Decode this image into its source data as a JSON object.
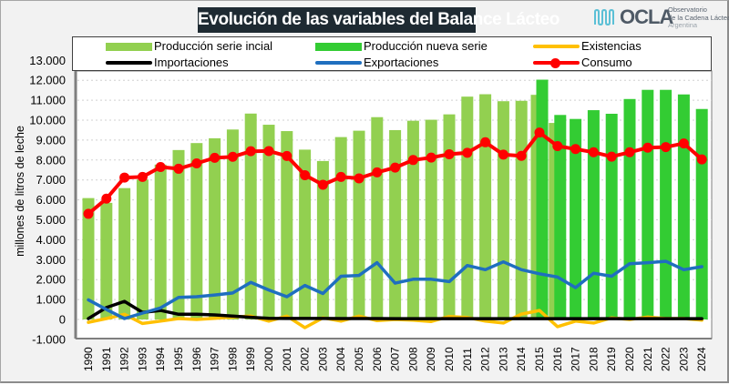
{
  "title": "Evolución de las variables del Balance Lácteo",
  "logo": {
    "icon": "ocla-wave-logo-icon",
    "name": "OCLA",
    "line1": "Observatorio",
    "line2": "de la Cadena Láctea",
    "line3": "Argentina"
  },
  "chart_data": {
    "type": "bar",
    "title": "Evolución de las variables del Balance Lácteo",
    "xlabel": "",
    "ylabel": "millones de litros de leche",
    "ylim": [
      -1000,
      13000
    ],
    "yticks": [
      -1000,
      0,
      1000,
      2000,
      3000,
      4000,
      5000,
      6000,
      7000,
      8000,
      9000,
      10000,
      11000,
      12000,
      13000
    ],
    "ytick_labels": [
      "-1.000",
      "0",
      "1.000",
      "2.000",
      "3.000",
      "4.000",
      "5.000",
      "6.000",
      "7.000",
      "8.000",
      "9.000",
      "10.000",
      "11.000",
      "12.000",
      "13.000"
    ],
    "grid": true,
    "legend_position": "top",
    "categories": [
      "1990",
      "1991",
      "1992",
      "1993",
      "1994",
      "1995",
      "1996",
      "1997",
      "1998",
      "1999",
      "2000",
      "2001",
      "2002",
      "2003",
      "2004",
      "2005",
      "2006",
      "2007",
      "2008",
      "2009",
      "2010",
      "2011",
      "2012",
      "2013",
      "2014",
      "2015",
      "2016",
      "2017",
      "2018",
      "2019",
      "2020",
      "2021",
      "2022",
      "2023",
      "2024"
    ],
    "series": [
      {
        "name": "Producción serie incial",
        "kind": "bar",
        "color": "#92d050",
        "values": [
          6090,
          5850,
          6590,
          7020,
          7770,
          8500,
          8850,
          9090,
          9530,
          10330,
          9770,
          9450,
          8520,
          7950,
          9150,
          9470,
          10150,
          9500,
          9970,
          10020,
          10290,
          11180,
          11300,
          10950,
          10970,
          11270,
          9860,
          null,
          null,
          null,
          null,
          null,
          null,
          null,
          null
        ]
      },
      {
        "name": "Producción nueva serie",
        "kind": "bar",
        "color": "#33cc33",
        "values": [
          null,
          null,
          null,
          null,
          null,
          null,
          null,
          null,
          null,
          null,
          null,
          null,
          null,
          null,
          null,
          null,
          null,
          null,
          null,
          null,
          null,
          null,
          null,
          null,
          null,
          12030,
          10260,
          10060,
          10500,
          10320,
          11060,
          11520,
          11520,
          11290,
          10560
        ]
      },
      {
        "name": "Existencias",
        "kind": "line",
        "color": "#ffc000",
        "values": [
          -140,
          45,
          260,
          -200,
          -80,
          45,
          0,
          60,
          120,
          170,
          -80,
          170,
          -410,
          80,
          -80,
          170,
          -60,
          0,
          -30,
          -100,
          150,
          100,
          -80,
          -180,
          270,
          450,
          -360,
          -80,
          -180,
          80,
          0,
          120,
          45,
          45,
          -30
        ]
      },
      {
        "name": "Importaciones",
        "kind": "line",
        "color": "#000000",
        "values": [
          45,
          600,
          910,
          350,
          450,
          260,
          260,
          230,
          170,
          110,
          60,
          50,
          50,
          50,
          45,
          45,
          45,
          40,
          40,
          40,
          40,
          40,
          40,
          40,
          40,
          40,
          40,
          40,
          40,
          40,
          40,
          40,
          40,
          40,
          40
        ]
      },
      {
        "name": "Exportaciones",
        "kind": "line",
        "color": "#1f6fbf",
        "values": [
          985,
          500,
          45,
          320,
          580,
          1110,
          1140,
          1230,
          1330,
          1860,
          1480,
          1140,
          1710,
          1300,
          2170,
          2210,
          2850,
          1820,
          2020,
          2020,
          1900,
          2710,
          2500,
          2890,
          2500,
          2290,
          2130,
          1600,
          2320,
          2170,
          2800,
          2850,
          2920,
          2500,
          2650
        ]
      },
      {
        "name": "Consumo",
        "kind": "line-markers",
        "color": "#ff0000",
        "values": [
          5300,
          6060,
          7120,
          7150,
          7650,
          7560,
          7830,
          8110,
          8160,
          8440,
          8450,
          8200,
          7240,
          6760,
          7150,
          7080,
          7380,
          7620,
          8000,
          8120,
          8290,
          8360,
          8890,
          8270,
          8210,
          9380,
          8700,
          8550,
          8390,
          8170,
          8390,
          8620,
          8650,
          8830,
          8030
        ]
      }
    ]
  },
  "legend": [
    {
      "label": "Producción serie incial",
      "type": "bar",
      "color": "#92d050"
    },
    {
      "label": "Producción nueva serie",
      "type": "bar",
      "color": "#33cc33"
    },
    {
      "label": "Existencias",
      "type": "line",
      "color": "#ffc000"
    },
    {
      "label": "Importaciones",
      "type": "line",
      "color": "#000000"
    },
    {
      "label": "Exportaciones",
      "type": "line",
      "color": "#1f6fbf"
    },
    {
      "label": "Consumo",
      "type": "line-marker",
      "color": "#ff0000"
    }
  ]
}
